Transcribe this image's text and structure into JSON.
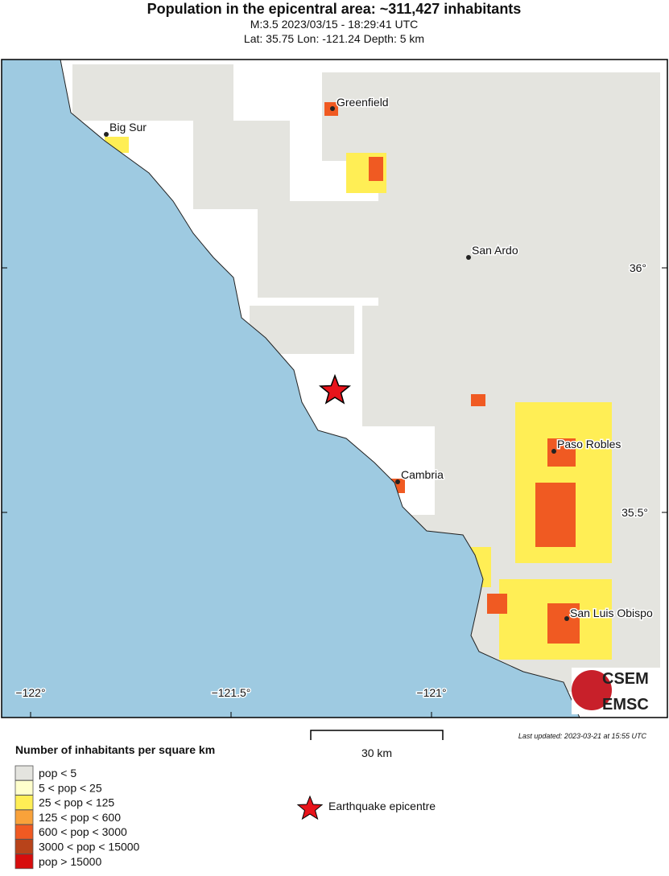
{
  "header": {
    "title": "Population in the epicentral area: ~311,427 inhabitants",
    "magnitude_time": "M:3.5 2023/03/15 - 18:29:41 UTC",
    "location": "Lat: 35.75 Lon: -121.24 Depth: 5 km"
  },
  "map": {
    "cities": [
      "Greenfield",
      "Big Sur",
      "San Ardo",
      "Paso Robles",
      "Cambria",
      "San Luis Obispo"
    ],
    "longitude_labels": [
      "−122°",
      "−121.5°",
      "−121°"
    ],
    "latitude_labels": [
      "36°",
      "35.5°"
    ],
    "logo": [
      "CSEM",
      "EMSC"
    ]
  },
  "scale_bar": "30 km",
  "last_updated": "Last updated: 2023-03-21 at 15:55 UTC",
  "legend": {
    "title": "Number of inhabitants per square km",
    "entries": [
      {
        "label": "pop < 5",
        "color": "#e4e4df"
      },
      {
        "label": "5 < pop < 25",
        "color": "#ffffcc"
      },
      {
        "label": "25 < pop < 125",
        "color": "#ffee55"
      },
      {
        "label": "125 < pop < 600",
        "color": "#f9a23a"
      },
      {
        "label": "600 < pop < 3000",
        "color": "#f05a22"
      },
      {
        "label": "3000 < pop < 15000",
        "color": "#b8431a"
      },
      {
        "label": "pop > 15000",
        "color": "#d70d0d"
      }
    ],
    "epicentre": "Earthquake epicentre"
  }
}
